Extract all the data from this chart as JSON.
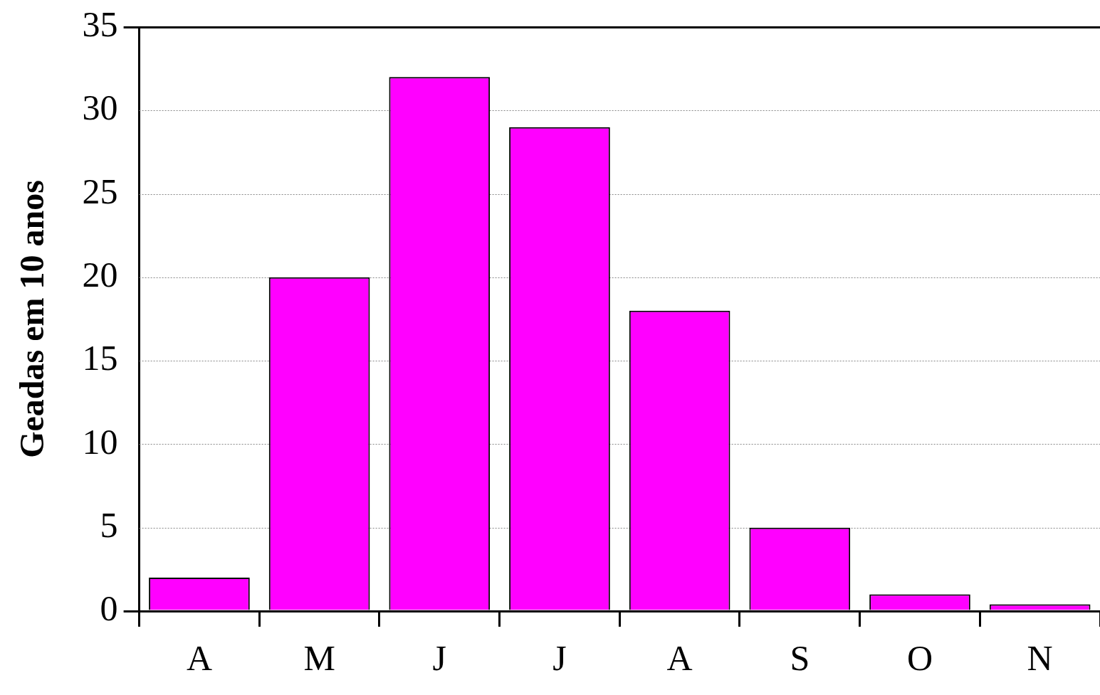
{
  "chart_data": {
    "type": "bar",
    "ylabel": "Geadas em 10 anos",
    "categories": [
      "A",
      "M",
      "J",
      "J",
      "A",
      "S",
      "O",
      "N"
    ],
    "values": [
      2,
      20,
      32,
      29,
      18,
      5,
      1,
      0.4
    ],
    "color": "#ff00ff",
    "ylim": [
      0,
      35
    ],
    "yticks": [
      0,
      5,
      10,
      15,
      20,
      25,
      30,
      35
    ],
    "grid": "y"
  }
}
